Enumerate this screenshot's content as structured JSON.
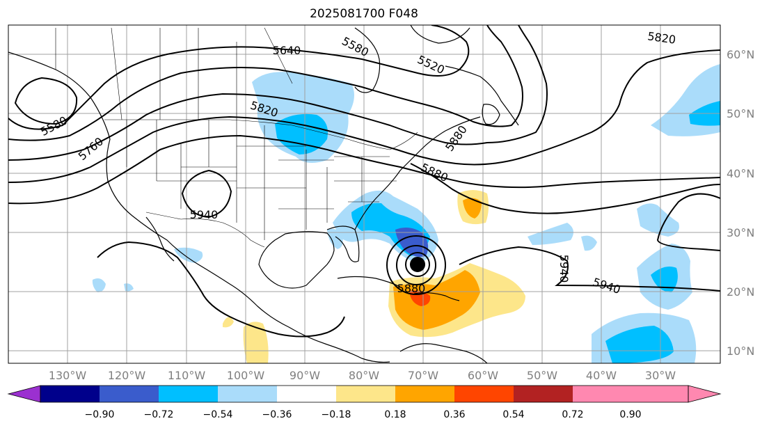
{
  "title": "2025081700 F048",
  "lat_labels": [
    "60°N",
    "50°N",
    "40°N",
    "30°N",
    "20°N",
    "10°N"
  ],
  "lon_labels": [
    "130°W",
    "120°W",
    "110°W",
    "100°W",
    "90°W",
    "80°W",
    "70°W",
    "60°W",
    "50°W",
    "40°W",
    "30°W"
  ],
  "contour_labels": [
    "5640",
    "5580",
    "5520",
    "5820",
    "5580",
    "5760",
    "5880",
    "5820",
    "5880",
    "5940",
    "5940",
    "5880",
    "5940"
  ],
  "colorbar": {
    "ticks": [
      "−0.90",
      "−0.72",
      "−0.54",
      "−0.36",
      "−0.18",
      "0.18",
      "0.36",
      "0.54",
      "0.72",
      "0.90"
    ],
    "colors": [
      "#9b30d0",
      "#00008b",
      "#3a5ccc",
      "#00bfff",
      "#aadcfa",
      "#ffffff",
      "#fde68a",
      "#ffa500",
      "#ff4500",
      "#b22222",
      "#ff88b0"
    ]
  }
}
